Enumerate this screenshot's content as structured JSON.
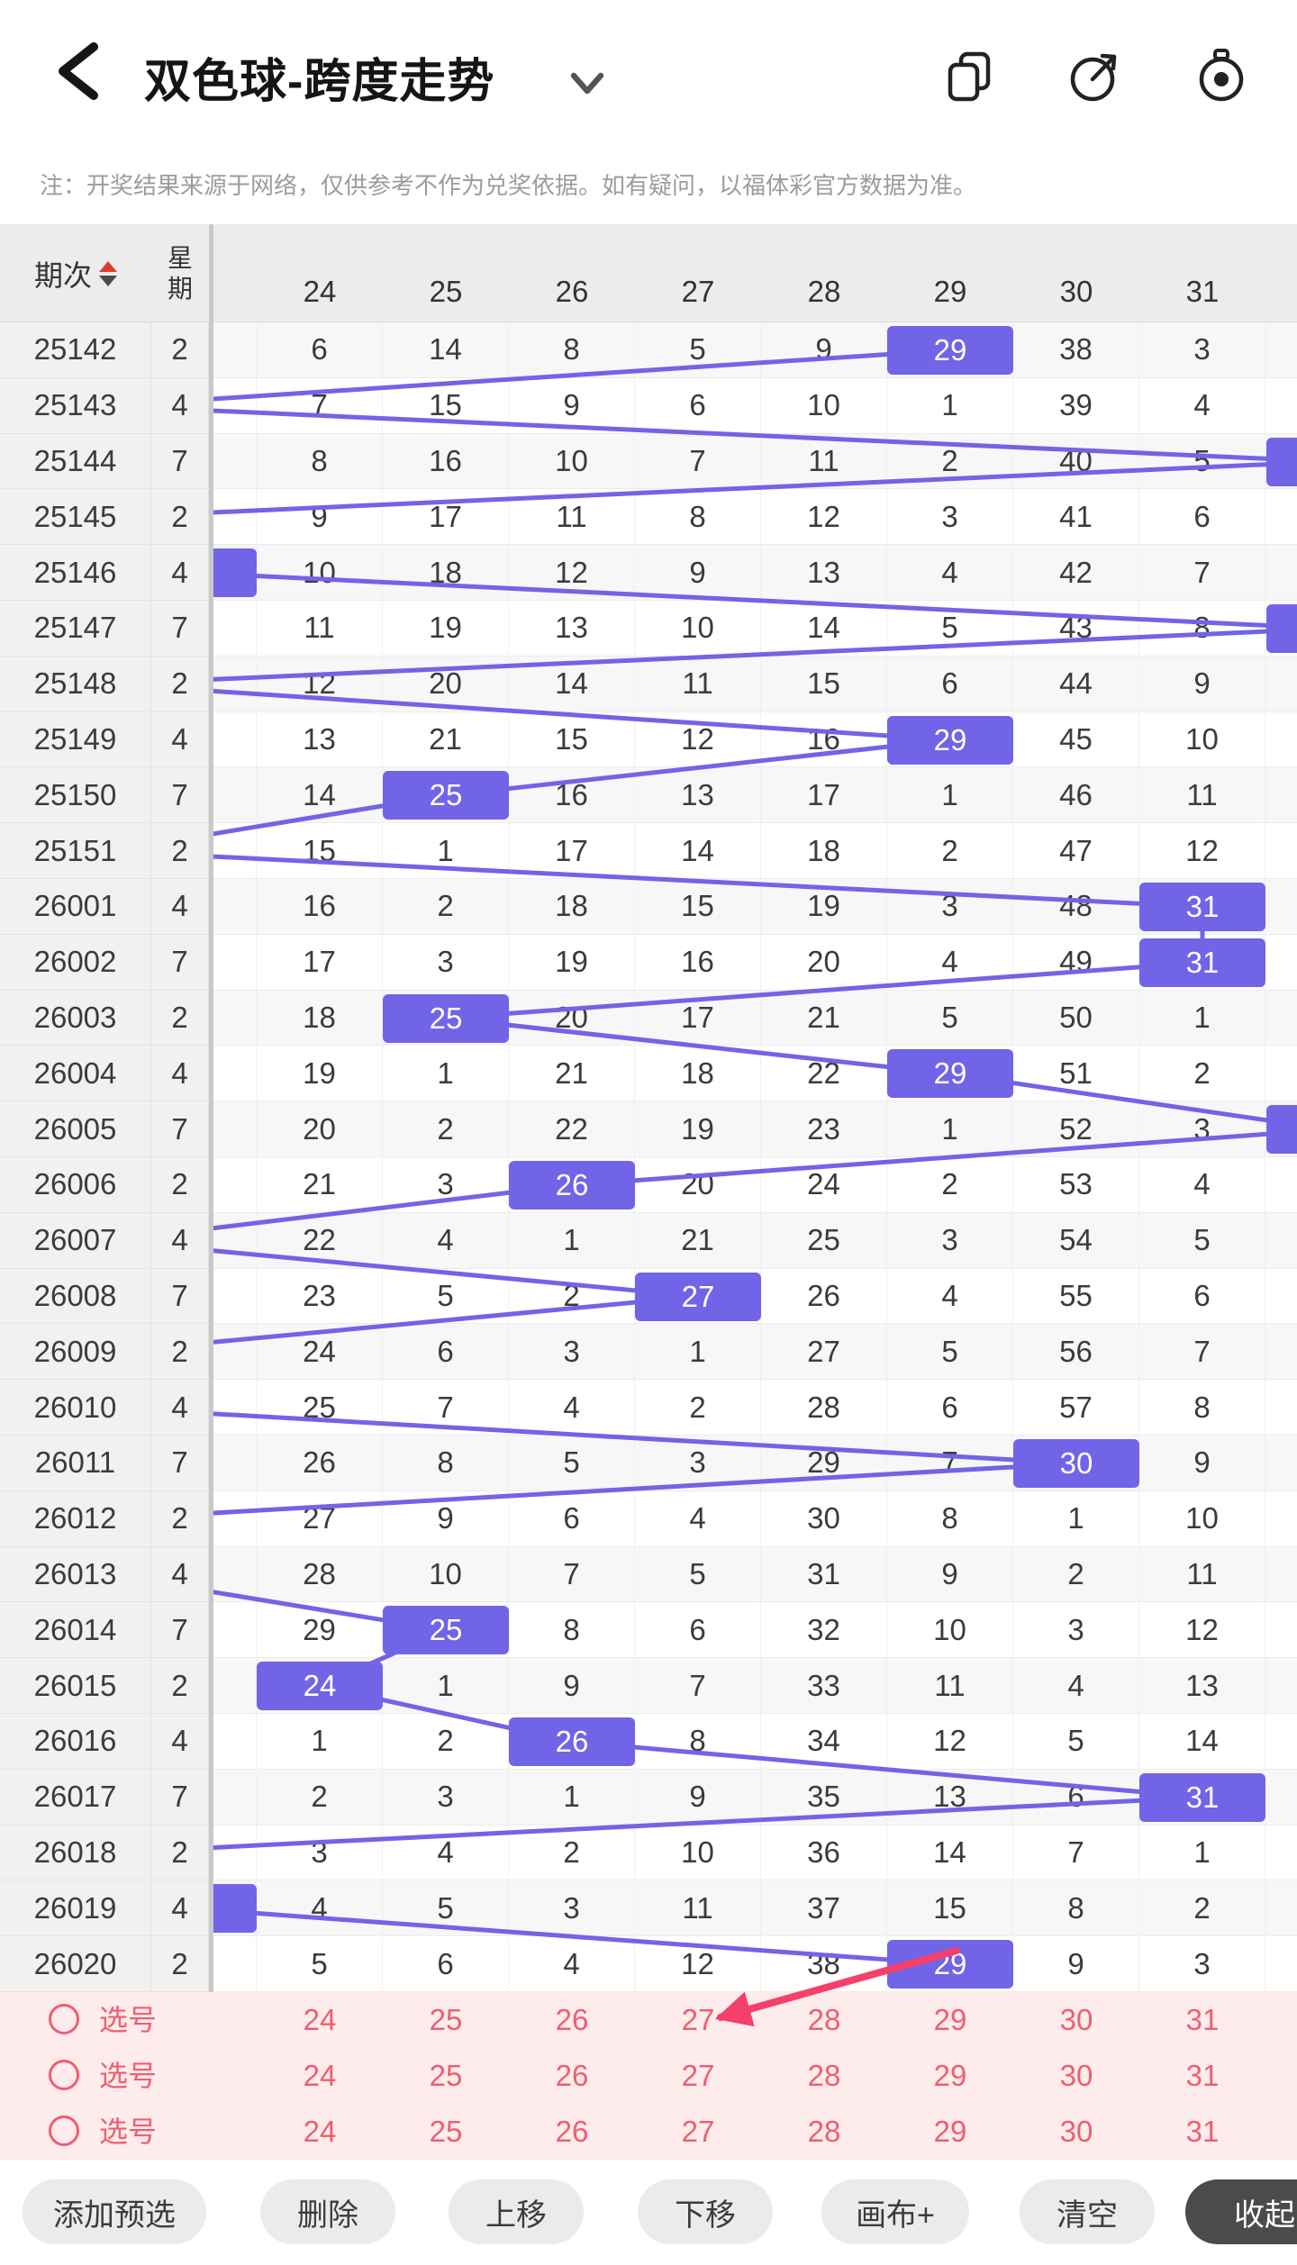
{
  "header": {
    "title": "双色球-跨度走势"
  },
  "note": "注：开奖结果来源于网络，仅供参考不作为兑奖依据。如有疑问，以福体彩官方数据为准。",
  "icons": {
    "back": "chevron-left",
    "title_caret": "chevron-down",
    "right_icons": [
      "pages-icon",
      "share-icon",
      "record-icon"
    ],
    "sort": "sort-arrows"
  },
  "table": {
    "period_header": "期次",
    "week_header": "星期",
    "columns": [
      "24",
      "25",
      "26",
      "27",
      "28",
      "29",
      "30",
      "31"
    ],
    "rows": [
      {
        "period": "25142",
        "week": "2",
        "values": [
          "6",
          "14",
          "8",
          "5",
          "9",
          "29",
          "38",
          "3"
        ],
        "hit": "29"
      },
      {
        "period": "25143",
        "week": "4",
        "values": [
          "7",
          "15",
          "9",
          "6",
          "10",
          "1",
          "39",
          "4"
        ],
        "hit": "offL"
      },
      {
        "period": "25144",
        "week": "7",
        "values": [
          "8",
          "16",
          "10",
          "7",
          "11",
          "2",
          "40",
          "5"
        ],
        "hit": "R"
      },
      {
        "period": "25145",
        "week": "2",
        "values": [
          "9",
          "17",
          "11",
          "8",
          "12",
          "3",
          "41",
          "6"
        ],
        "hit": "offL"
      },
      {
        "period": "25146",
        "week": "4",
        "values": [
          "10",
          "18",
          "12",
          "9",
          "13",
          "4",
          "42",
          "7"
        ],
        "hit": "L"
      },
      {
        "period": "25147",
        "week": "7",
        "values": [
          "11",
          "19",
          "13",
          "10",
          "14",
          "5",
          "43",
          "8"
        ],
        "hit": "R"
      },
      {
        "period": "25148",
        "week": "2",
        "values": [
          "12",
          "20",
          "14",
          "11",
          "15",
          "6",
          "44",
          "9"
        ],
        "hit": "offL"
      },
      {
        "period": "25149",
        "week": "4",
        "values": [
          "13",
          "21",
          "15",
          "12",
          "16",
          "29",
          "45",
          "10"
        ],
        "hit": "29"
      },
      {
        "period": "25150",
        "week": "7",
        "values": [
          "14",
          "25",
          "16",
          "13",
          "17",
          "1",
          "46",
          "11"
        ],
        "hit": "25"
      },
      {
        "period": "25151",
        "week": "2",
        "values": [
          "15",
          "1",
          "17",
          "14",
          "18",
          "2",
          "47",
          "12"
        ],
        "hit": "offL"
      },
      {
        "period": "26001",
        "week": "4",
        "values": [
          "16",
          "2",
          "18",
          "15",
          "19",
          "3",
          "48",
          "31"
        ],
        "hit": "31"
      },
      {
        "period": "26002",
        "week": "7",
        "values": [
          "17",
          "3",
          "19",
          "16",
          "20",
          "4",
          "49",
          "31"
        ],
        "hit": "31"
      },
      {
        "period": "26003",
        "week": "2",
        "values": [
          "18",
          "25",
          "20",
          "17",
          "21",
          "5",
          "50",
          "1"
        ],
        "hit": "25"
      },
      {
        "period": "26004",
        "week": "4",
        "values": [
          "19",
          "1",
          "21",
          "18",
          "22",
          "29",
          "51",
          "2"
        ],
        "hit": "29"
      },
      {
        "period": "26005",
        "week": "7",
        "values": [
          "20",
          "2",
          "22",
          "19",
          "23",
          "1",
          "52",
          "3"
        ],
        "hit": "R"
      },
      {
        "period": "26006",
        "week": "2",
        "values": [
          "21",
          "3",
          "26",
          "20",
          "24",
          "2",
          "53",
          "4"
        ],
        "hit": "26"
      },
      {
        "period": "26007",
        "week": "4",
        "values": [
          "22",
          "4",
          "1",
          "21",
          "25",
          "3",
          "54",
          "5"
        ],
        "hit": "offL"
      },
      {
        "period": "26008",
        "week": "7",
        "values": [
          "23",
          "5",
          "2",
          "27",
          "26",
          "4",
          "55",
          "6"
        ],
        "hit": "27"
      },
      {
        "period": "26009",
        "week": "2",
        "values": [
          "24",
          "6",
          "3",
          "1",
          "27",
          "5",
          "56",
          "7"
        ],
        "hit": "offL"
      },
      {
        "period": "26010",
        "week": "4",
        "values": [
          "25",
          "7",
          "4",
          "2",
          "28",
          "6",
          "57",
          "8"
        ],
        "hit": "offL"
      },
      {
        "period": "26011",
        "week": "7",
        "values": [
          "26",
          "8",
          "5",
          "3",
          "29",
          "7",
          "30",
          "9"
        ],
        "hit": "30"
      },
      {
        "period": "26012",
        "week": "2",
        "values": [
          "27",
          "9",
          "6",
          "4",
          "30",
          "8",
          "1",
          "10"
        ],
        "hit": "offL"
      },
      {
        "period": "26013",
        "week": "4",
        "values": [
          "28",
          "10",
          "7",
          "5",
          "31",
          "9",
          "2",
          "11"
        ],
        "hit": "offL"
      },
      {
        "period": "26014",
        "week": "7",
        "values": [
          "29",
          "25",
          "8",
          "6",
          "32",
          "10",
          "3",
          "12"
        ],
        "hit": "25"
      },
      {
        "period": "26015",
        "week": "2",
        "values": [
          "24",
          "1",
          "9",
          "7",
          "33",
          "11",
          "4",
          "13"
        ],
        "hit": "24"
      },
      {
        "period": "26016",
        "week": "4",
        "values": [
          "1",
          "2",
          "26",
          "8",
          "34",
          "12",
          "5",
          "14"
        ],
        "hit": "26"
      },
      {
        "period": "26017",
        "week": "7",
        "values": [
          "2",
          "3",
          "1",
          "9",
          "35",
          "13",
          "6",
          "31"
        ],
        "hit": "31"
      },
      {
        "period": "26018",
        "week": "2",
        "values": [
          "3",
          "4",
          "2",
          "10",
          "36",
          "14",
          "7",
          "1"
        ],
        "hit": "offL"
      },
      {
        "period": "26019",
        "week": "4",
        "values": [
          "4",
          "5",
          "3",
          "11",
          "37",
          "15",
          "8",
          "2"
        ],
        "hit": "L"
      },
      {
        "period": "26020",
        "week": "2",
        "values": [
          "5",
          "6",
          "4",
          "12",
          "38",
          "29",
          "9",
          "3"
        ],
        "hit": "29"
      }
    ]
  },
  "selection": {
    "label": "选号",
    "rows": [
      [
        "24",
        "25",
        "26",
        "27",
        "28",
        "29",
        "30",
        "31"
      ],
      [
        "24",
        "25",
        "26",
        "27",
        "28",
        "29",
        "30",
        "31"
      ],
      [
        "24",
        "25",
        "26",
        "27",
        "28",
        "29",
        "30",
        "31"
      ]
    ]
  },
  "toolbar": {
    "buttons": [
      "添加预选",
      "删除",
      "上移",
      "下移",
      "画布+",
      "清空",
      "收起"
    ]
  },
  "colors": {
    "accent_purple": "#7164e7",
    "pink": "#ef5e70",
    "pink_bg": "#fdeceb",
    "arrow": "#f4406b"
  }
}
